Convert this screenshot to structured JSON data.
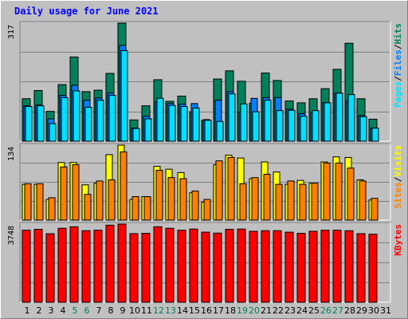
{
  "title": "Daily usage for June 2021",
  "colors": {
    "hits": "#00805c",
    "files": "#0080ff",
    "pages": "#00e0ff",
    "visits": "#ffff00",
    "sites": "#ff8000",
    "kbytes": "#ff0000",
    "weekend_label": "#00805c"
  },
  "chart_data": [
    {
      "type": "bar",
      "panel": "hits-files-pages",
      "ymax_label": "317",
      "ylim": [
        0,
        317
      ],
      "legend": [
        {
          "name": "Pages",
          "color": "#00e0ff"
        },
        {
          "name": "/",
          "color": "#000000"
        },
        {
          "name": "Files",
          "color": "#0080ff"
        },
        {
          "name": "/",
          "color": "#000000"
        },
        {
          "name": "Hits",
          "color": "#00805c"
        }
      ],
      "categories": [
        "1",
        "2",
        "3",
        "4",
        "5",
        "6",
        "7",
        "8",
        "9",
        "10",
        "11",
        "12",
        "13",
        "14",
        "15",
        "16",
        "17",
        "18",
        "19",
        "20",
        "21",
        "22",
        "23",
        "24",
        "25",
        "26",
        "27",
        "28",
        "29",
        "30",
        "31"
      ],
      "series": [
        {
          "name": "Hits",
          "values": [
            114,
            136,
            80,
            152,
            226,
            133,
            137,
            182,
            317,
            57,
            95,
            165,
            107,
            121,
            79,
            56,
            167,
            189,
            161,
            102,
            183,
            163,
            108,
            103,
            114,
            141,
            193,
            263,
            114,
            59,
            0
          ]
        },
        {
          "name": "Files",
          "values": [
            95,
            97,
            60,
            123,
            150,
            110,
            116,
            129,
            257,
            35,
            67,
            105,
            101,
            99,
            101,
            58,
            110,
            133,
            78,
            115,
            117,
            117,
            86,
            74,
            77,
            103,
            129,
            109,
            69,
            35,
            0
          ]
        },
        {
          "name": "Pages",
          "values": [
            93,
            95,
            47,
            117,
            135,
            91,
            110,
            123,
            243,
            34,
            60,
            115,
            96,
            93,
            89,
            56,
            53,
            127,
            100,
            79,
            110,
            82,
            83,
            67,
            82,
            103,
            129,
            125,
            66,
            35,
            0
          ]
        }
      ]
    },
    {
      "type": "bar",
      "panel": "visits-sites",
      "ymax_label": "134",
      "ylim": [
        0,
        134
      ],
      "legend": [
        {
          "name": "Sites",
          "color": "#ff8000"
        },
        {
          "name": "/",
          "color": "#000000"
        },
        {
          "name": "Visits",
          "color": "#ffff00"
        }
      ],
      "categories": [
        "1",
        "2",
        "3",
        "4",
        "5",
        "6",
        "7",
        "8",
        "9",
        "10",
        "11",
        "12",
        "13",
        "14",
        "15",
        "16",
        "17",
        "18",
        "19",
        "20",
        "21",
        "22",
        "23",
        "24",
        "25",
        "26",
        "27",
        "28",
        "29",
        "30",
        "31"
      ],
      "series": [
        {
          "name": "Visits",
          "values": [
            64,
            64,
            37,
            103,
            103,
            63,
            66,
            117,
            134,
            37,
            42,
            96,
            91,
            85,
            49,
            32,
            99,
            116,
            111,
            74,
            104,
            86,
            64,
            71,
            66,
            104,
            113,
            112,
            72,
            36,
            0
          ]
        },
        {
          "name": "Sites",
          "values": [
            65,
            65,
            40,
            95,
            99,
            46,
            70,
            72,
            122,
            42,
            42,
            89,
            76,
            74,
            52,
            37,
            106,
            112,
            65,
            76,
            82,
            64,
            70,
            64,
            66,
            102,
            102,
            93,
            70,
            39,
            0
          ]
        }
      ]
    },
    {
      "type": "bar",
      "panel": "kbytes",
      "ymax_label": "3748",
      "ylim": [
        0,
        3748
      ],
      "legend": [
        {
          "name": "KBytes",
          "color": "#ff0000"
        }
      ],
      "categories": [
        "1",
        "2",
        "3",
        "4",
        "5",
        "6",
        "7",
        "8",
        "9",
        "10",
        "11",
        "12",
        "13",
        "14",
        "15",
        "16",
        "17",
        "18",
        "19",
        "20",
        "21",
        "22",
        "23",
        "24",
        "25",
        "26",
        "27",
        "28",
        "29",
        "30",
        "31"
      ],
      "series": [
        {
          "name": "KBytes",
          "values": [
            3454,
            3496,
            3287,
            3550,
            3622,
            3432,
            3454,
            3698,
            3748,
            3291,
            3307,
            3622,
            3547,
            3454,
            3511,
            3363,
            3317,
            3498,
            3511,
            3404,
            3432,
            3432,
            3362,
            3307,
            3404,
            3454,
            3454,
            3432,
            3291,
            3263,
            0
          ]
        }
      ]
    }
  ],
  "weekend_days": [
    "5",
    "6",
    "12",
    "13",
    "19",
    "20",
    "26",
    "27"
  ]
}
